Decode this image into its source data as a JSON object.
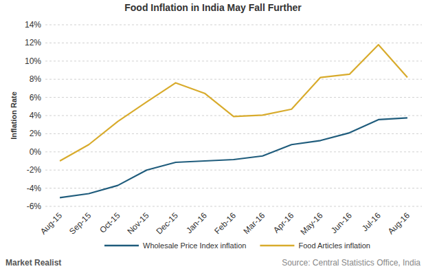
{
  "chart_data": {
    "type": "line",
    "title": "Food Inflation in India May Fall Further",
    "y_label": "Inflation Rate",
    "source": "Source: Central Statistics Office, India",
    "logo": "Market Realist",
    "categories": [
      "Aug-15",
      "Sep-15",
      "Oct-15",
      "Nov-15",
      "Dec-15",
      "Jan-16",
      "Feb-16",
      "Mar-16",
      "Apr-16",
      "May-16",
      "Jun-16",
      "Jul-16",
      "Aug-16"
    ],
    "series": [
      {
        "name": "Wholesale Price Index inflation",
        "color": "#1f5c7c",
        "values": [
          -5.05,
          -4.6,
          -3.7,
          -2.0,
          -1.15,
          -1.0,
          -0.85,
          -0.45,
          0.8,
          1.25,
          2.1,
          3.55,
          3.75
        ]
      },
      {
        "name": "Food Articles inflation",
        "color": "#d8ab2c",
        "values": [
          -1.0,
          0.8,
          3.35,
          5.5,
          7.6,
          6.45,
          3.9,
          4.05,
          4.7,
          8.2,
          8.55,
          11.8,
          8.2
        ]
      }
    ],
    "ylim": [
      -6,
      14
    ],
    "yticks": [
      {
        "value": -6,
        "label": "-6%"
      },
      {
        "value": -4,
        "label": "-4%"
      },
      {
        "value": -2,
        "label": "-2%"
      },
      {
        "value": 0,
        "label": "0%"
      },
      {
        "value": 2,
        "label": "2%"
      },
      {
        "value": 4,
        "label": "4%"
      },
      {
        "value": 6,
        "label": "6%"
      },
      {
        "value": 8,
        "label": "8%"
      },
      {
        "value": 10,
        "label": "10%"
      },
      {
        "value": 12,
        "label": "12%"
      },
      {
        "value": 14,
        "label": "14%"
      }
    ],
    "grid": true,
    "legend": "bottom"
  }
}
